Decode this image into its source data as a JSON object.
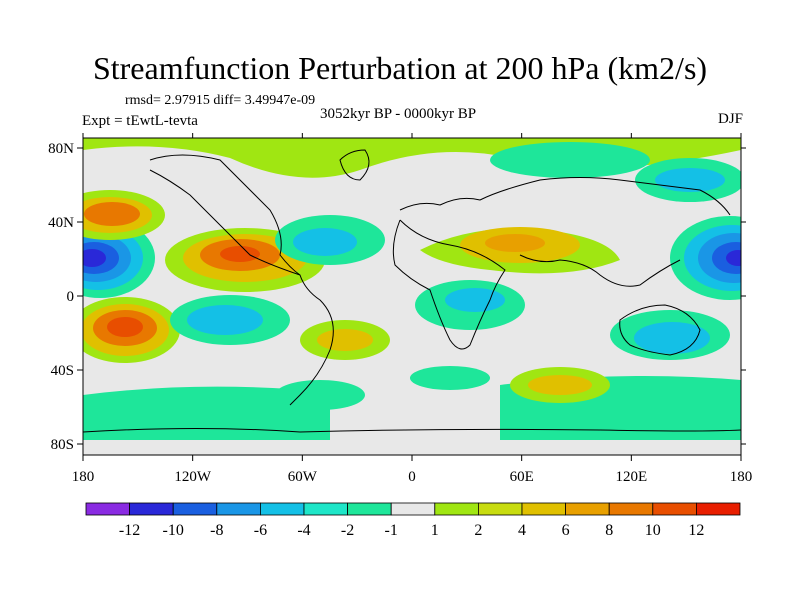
{
  "title": "Streamfunction Perturbation at 200 hPa (km2/s)",
  "stats": "rmsd= 2.97915 diff= 3.49947e-09",
  "experiment": "Expt = tEwtL-tevta",
  "period": "3052kyr BP - 0000kyr BP",
  "season": "DJF",
  "map": {
    "lon_ticks": [
      "180",
      "120W",
      "60W",
      "0",
      "60E",
      "120E",
      "180"
    ],
    "lat_ticks": [
      "80N",
      "40N",
      "0",
      "40S",
      "80S"
    ]
  },
  "colorbar": {
    "colors": [
      "#8a2be2",
      "#2a28d8",
      "#1a5fe0",
      "#1a96e6",
      "#14c0e6",
      "#1ee6c8",
      "#1ee69a",
      "#e8e8e8",
      "#a0e612",
      "#c8dc10",
      "#e0c000",
      "#e8a000",
      "#e87800",
      "#e84e00",
      "#e81e00"
    ],
    "labels": [
      "-12",
      "-10",
      "-8",
      "-6",
      "-4",
      "-2",
      "-1",
      "1",
      "2",
      "4",
      "6",
      "8",
      "10",
      "12"
    ]
  }
}
